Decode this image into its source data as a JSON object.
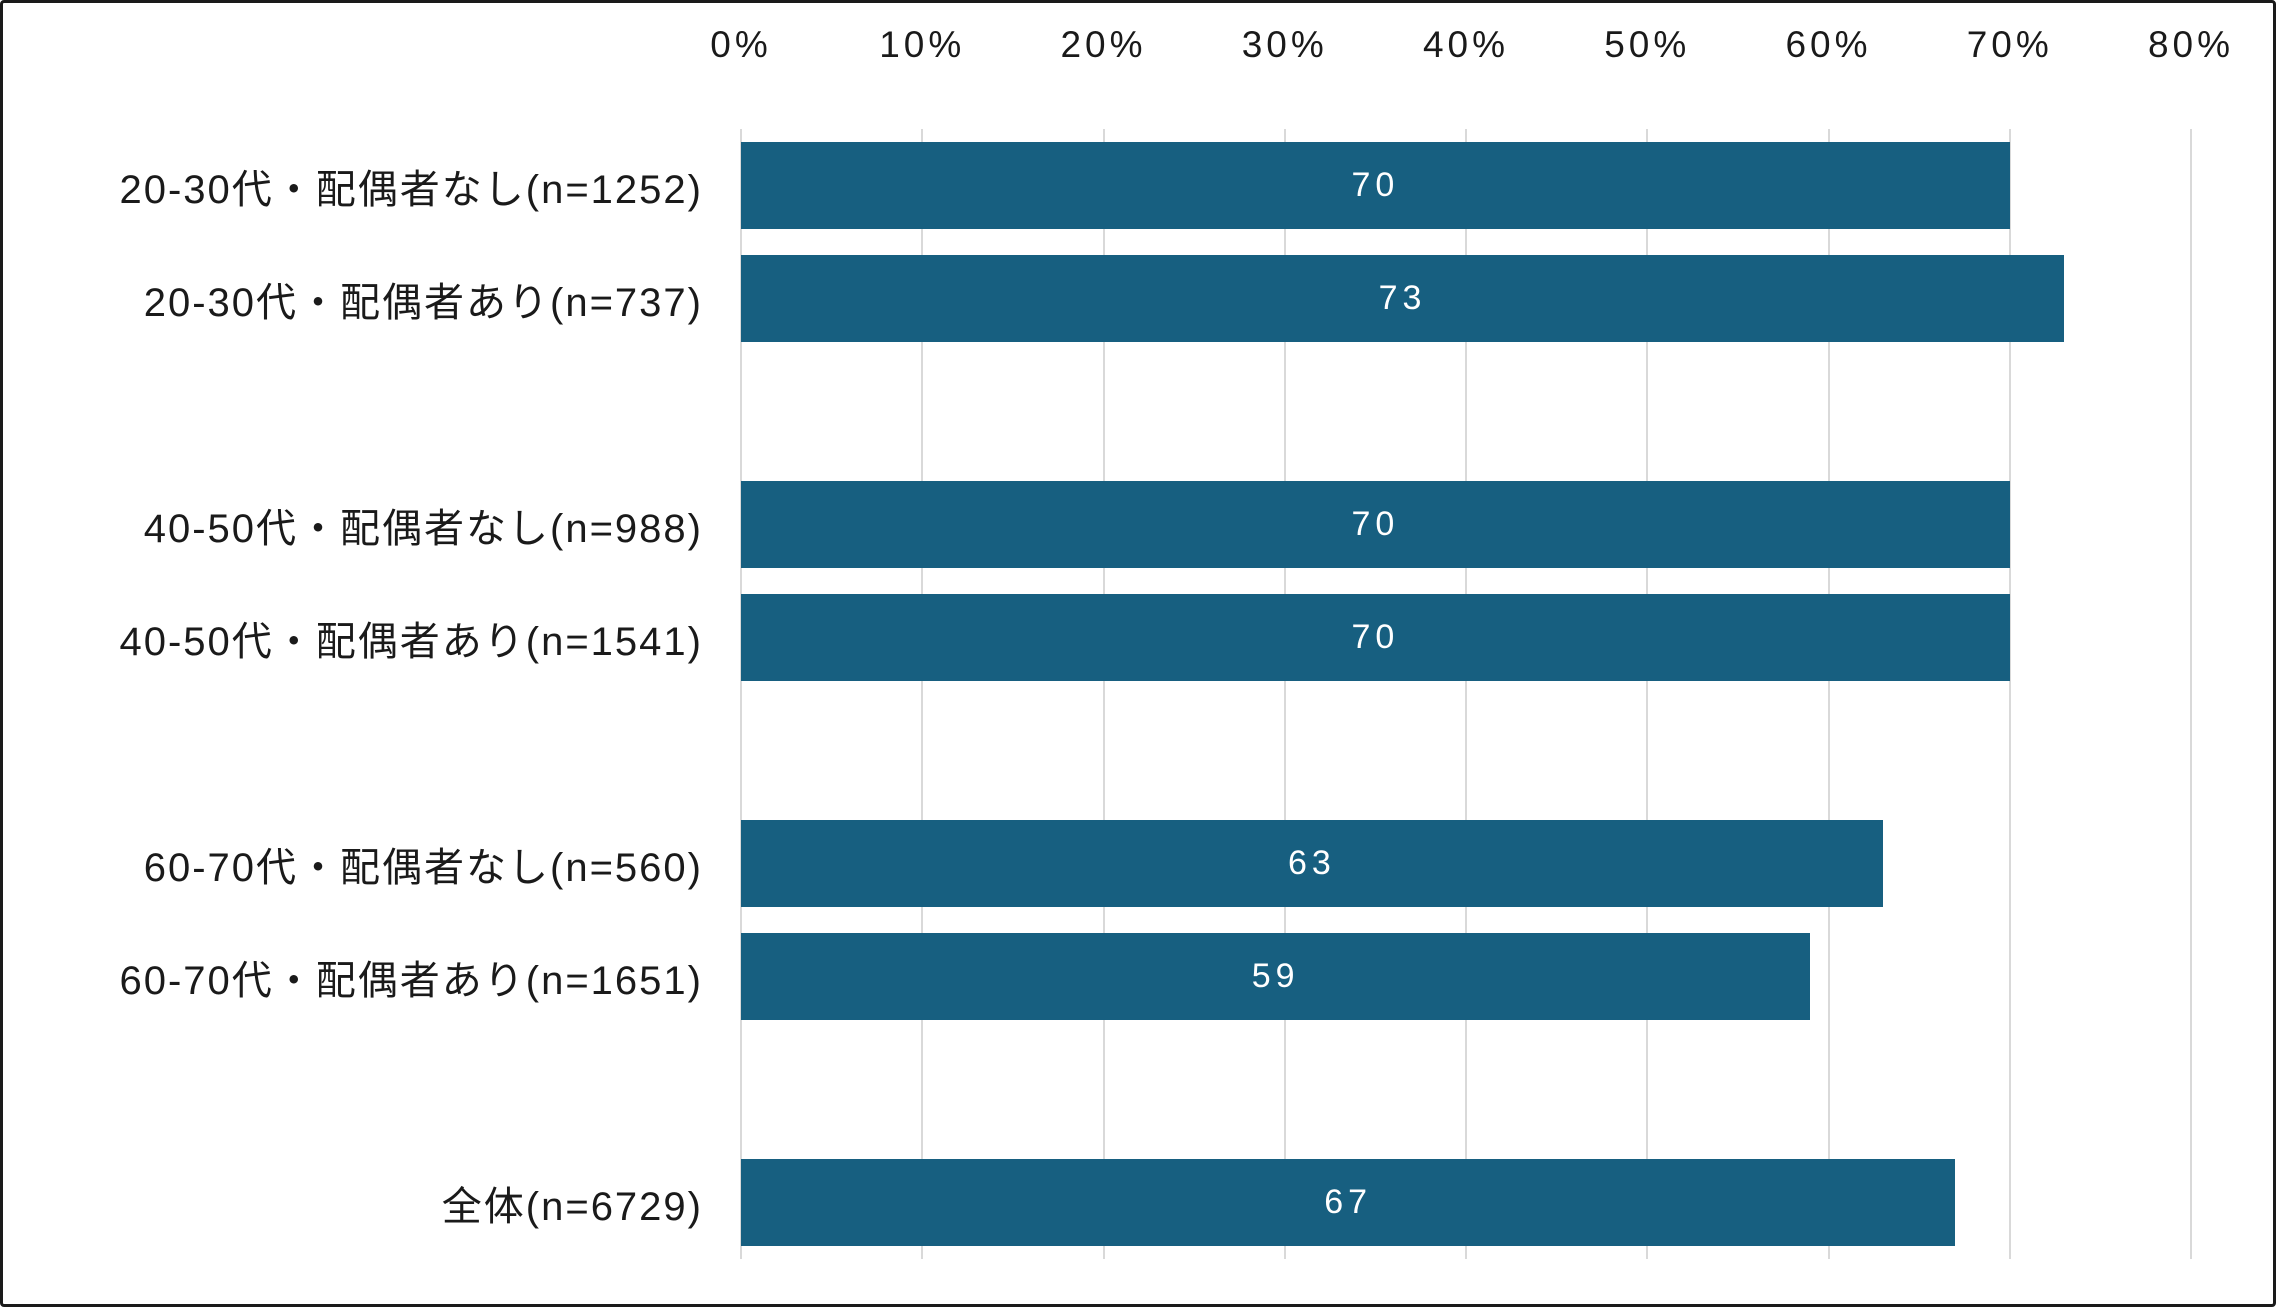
{
  "frame": {
    "background_color": "#ffffff",
    "border_color": "#1a1a1a"
  },
  "chart_data": {
    "type": "bar",
    "orientation": "horizontal",
    "title": "",
    "xlabel": "",
    "ylabel": "",
    "axis_position": "top",
    "grid": true,
    "xlim": [
      0,
      80
    ],
    "xticks": [
      0,
      10,
      20,
      30,
      40,
      50,
      60,
      70,
      80
    ],
    "xtick_labels": [
      "0%",
      "10%",
      "20%",
      "30%",
      "40%",
      "50%",
      "60%",
      "70%",
      "80%"
    ],
    "categories": [
      "20-30代・配偶者なし(n=1252)",
      "20-30代・配偶者あり(n=737)",
      "",
      "40-50代・配偶者なし(n=988)",
      "40-50代・配偶者あり(n=1541)",
      "",
      "60-70代・配偶者なし(n=560)",
      "60-70代・配偶者あり(n=1651)",
      "",
      "全体(n=6729)"
    ],
    "values": [
      70,
      73,
      null,
      70,
      70,
      null,
      63,
      59,
      null,
      67
    ],
    "value_labels": [
      "70",
      "73",
      "",
      "70",
      "70",
      "",
      "63",
      "59",
      "",
      "67"
    ],
    "bar_color": "#175F80",
    "gridline_color": "#d9d9d9",
    "value_label_color": "#ffffff",
    "text_color": "#1a1a1a"
  }
}
